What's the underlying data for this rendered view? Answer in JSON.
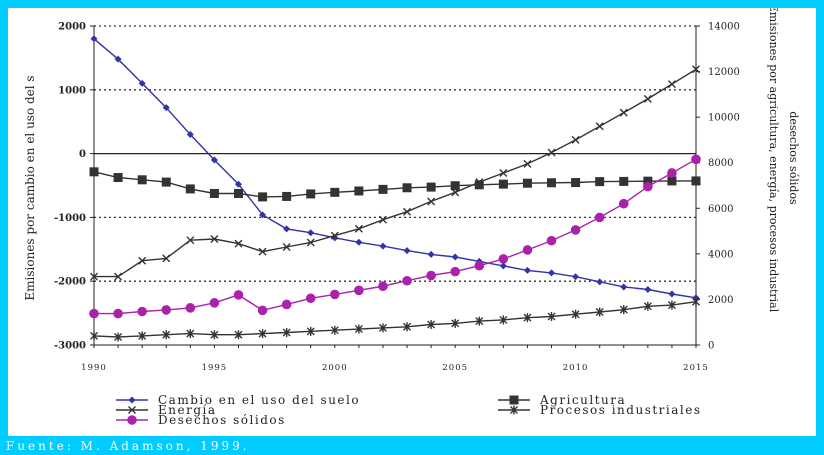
{
  "source_note": "Fuente: M. Adamson, 1999.",
  "chart_data": {
    "type": "line",
    "title": "",
    "xlabel": "",
    "ylabel_left": "Emisiones por cambio en el uso del s",
    "ylabel_right": [
      "Emisiones por agricultura, energía, procesos industrial",
      "desechos sólidos"
    ],
    "x_ticks": [
      "1990",
      "1995",
      "2000",
      "2005",
      "2010",
      "2015"
    ],
    "x": [
      1990,
      1991,
      1992,
      1993,
      1994,
      1995,
      1996,
      1997,
      1998,
      1999,
      2000,
      2001,
      2002,
      2003,
      2004,
      2005,
      2006,
      2007,
      2008,
      2009,
      2010,
      2011,
      2012,
      2013,
      2014,
      2015
    ],
    "xlim": [
      1990,
      2015
    ],
    "ylim_left": [
      -3000,
      2000
    ],
    "yticks_left": [
      "-3000",
      "-2000",
      "-1000",
      "0",
      "1000",
      "2000"
    ],
    "ylim_right": [
      0,
      14000
    ],
    "yticks_right": [
      "0",
      "2000",
      "4000",
      "6000",
      "8000",
      "10000",
      "12000",
      "14000"
    ],
    "grid": "dotted horizontal at left-axis thousands",
    "legend_position": "bottom",
    "series": [
      {
        "name": "Cambio en el uso del suelo",
        "axis": "left",
        "color": "#3333aa",
        "marker": "diamond",
        "values": [
          1800,
          1480,
          1100,
          720,
          300,
          -100,
          -480,
          -960,
          -1180,
          -1240,
          -1320,
          -1390,
          -1450,
          -1520,
          -1580,
          -1620,
          -1690,
          -1760,
          -1830,
          -1870,
          -1930,
          -2010,
          -2090,
          -2130,
          -2200,
          -2260
        ]
      },
      {
        "name": "Agricultura",
        "axis": "right",
        "color": "#333333",
        "marker": "square",
        "values": [
          7600,
          7350,
          7250,
          7150,
          6850,
          6650,
          6650,
          6500,
          6520,
          6630,
          6700,
          6760,
          6830,
          6900,
          6930,
          6990,
          7030,
          7060,
          7100,
          7120,
          7130,
          7170,
          7180,
          7190,
          7200,
          7200
        ]
      },
      {
        "name": "Energía",
        "axis": "right",
        "color": "#333333",
        "marker": "x",
        "values": [
          3000,
          3000,
          3700,
          3800,
          4600,
          4650,
          4450,
          4100,
          4300,
          4500,
          4800,
          5100,
          5500,
          5850,
          6300,
          6700,
          7150,
          7550,
          7950,
          8450,
          9000,
          9600,
          10200,
          10800,
          11450,
          12100
        ]
      },
      {
        "name": "Procesos industriales",
        "axis": "right",
        "color": "#333333",
        "marker": "asterisk",
        "values": [
          400,
          350,
          400,
          450,
          500,
          450,
          450,
          500,
          550,
          600,
          650,
          700,
          750,
          800,
          900,
          950,
          1050,
          1100,
          1200,
          1250,
          1350,
          1450,
          1550,
          1700,
          1750,
          1900
        ]
      },
      {
        "name": "Desechos sólidos",
        "axis": "right",
        "color": "#aa22aa",
        "marker": "circle",
        "values": [
          1380,
          1380,
          1470,
          1540,
          1630,
          1850,
          2200,
          1520,
          1780,
          2050,
          2220,
          2400,
          2580,
          2820,
          3050,
          3220,
          3480,
          3780,
          4170,
          4580,
          5050,
          5600,
          6200,
          6950,
          7550,
          8150
        ]
      }
    ]
  }
}
